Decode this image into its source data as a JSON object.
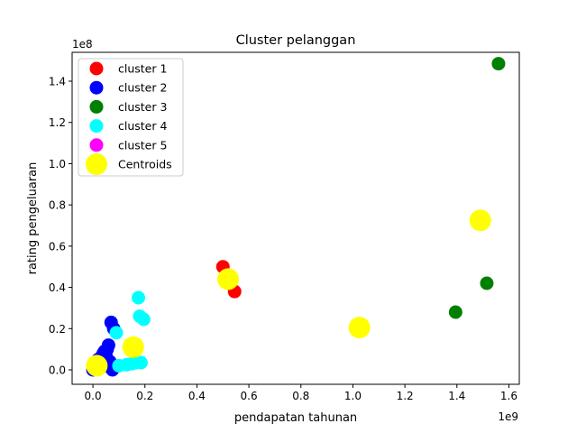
{
  "chart_data": {
    "type": "scatter",
    "title": "Cluster pelanggan",
    "xlabel": "pendapatan tahunan",
    "ylabel": "rating pengeluaran",
    "x_offset_text": "1e9",
    "y_offset_text": "1e8",
    "xlim": [
      -0.08,
      1.64
    ],
    "ylim": [
      -0.07,
      1.54
    ],
    "x_ticks": [
      0.0,
      0.2,
      0.4,
      0.6,
      0.8,
      1.0,
      1.2,
      1.4,
      1.6
    ],
    "x_tick_labels": [
      "0.0",
      "0.2",
      "0.4",
      "0.6",
      "0.8",
      "1.0",
      "1.2",
      "1.4",
      "1.6"
    ],
    "y_ticks": [
      0.0,
      0.2,
      0.4,
      0.6,
      0.8,
      1.0,
      1.2,
      1.4
    ],
    "y_tick_labels": [
      "0.0",
      "0.2",
      "0.4",
      "0.6",
      "0.8",
      "1.0",
      "1.2",
      "1.4"
    ],
    "grid": false,
    "legend_position": "top-left",
    "series": [
      {
        "name": "cluster 1",
        "color": "#ff0000",
        "size": "small",
        "points": [
          [
            0.5,
            0.5
          ],
          [
            0.545,
            0.38
          ]
        ]
      },
      {
        "name": "cluster 2",
        "color": "#0000ff",
        "size": "small",
        "points": [
          [
            0.0,
            0.0
          ],
          [
            0.01,
            0.01
          ],
          [
            0.015,
            0.025
          ],
          [
            0.02,
            0.015
          ],
          [
            0.025,
            0.04
          ],
          [
            0.03,
            0.06
          ],
          [
            0.035,
            0.03
          ],
          [
            0.04,
            0.08
          ],
          [
            0.045,
            0.02
          ],
          [
            0.05,
            0.07
          ],
          [
            0.055,
            0.1
          ],
          [
            0.06,
            0.12
          ],
          [
            0.065,
            0.04
          ],
          [
            0.07,
            0.23
          ],
          [
            0.075,
            0.0
          ],
          [
            0.08,
            0.2
          ],
          [
            0.02,
            0.05
          ],
          [
            0.045,
            0.09
          ]
        ]
      },
      {
        "name": "cluster 3",
        "color": "#008000",
        "size": "small",
        "points": [
          [
            1.56,
            1.485
          ],
          [
            1.515,
            0.42
          ],
          [
            1.395,
            0.28
          ]
        ]
      },
      {
        "name": "cluster 4",
        "color": "#00ffff",
        "size": "small",
        "points": [
          [
            0.175,
            0.35
          ],
          [
            0.18,
            0.26
          ],
          [
            0.195,
            0.245
          ],
          [
            0.09,
            0.18
          ],
          [
            0.1,
            0.02
          ],
          [
            0.13,
            0.025
          ],
          [
            0.15,
            0.03
          ],
          [
            0.165,
            0.035
          ],
          [
            0.185,
            0.035
          ]
        ]
      },
      {
        "name": "cluster 5",
        "color": "#ff00ff",
        "size": "small",
        "points": []
      },
      {
        "name": "Centroids",
        "color": "#ffff00",
        "size": "large",
        "points": [
          [
            1.49,
            0.725
          ],
          [
            0.52,
            0.44
          ],
          [
            1.025,
            0.205
          ],
          [
            0.155,
            0.11
          ],
          [
            0.015,
            0.02
          ]
        ]
      }
    ]
  }
}
